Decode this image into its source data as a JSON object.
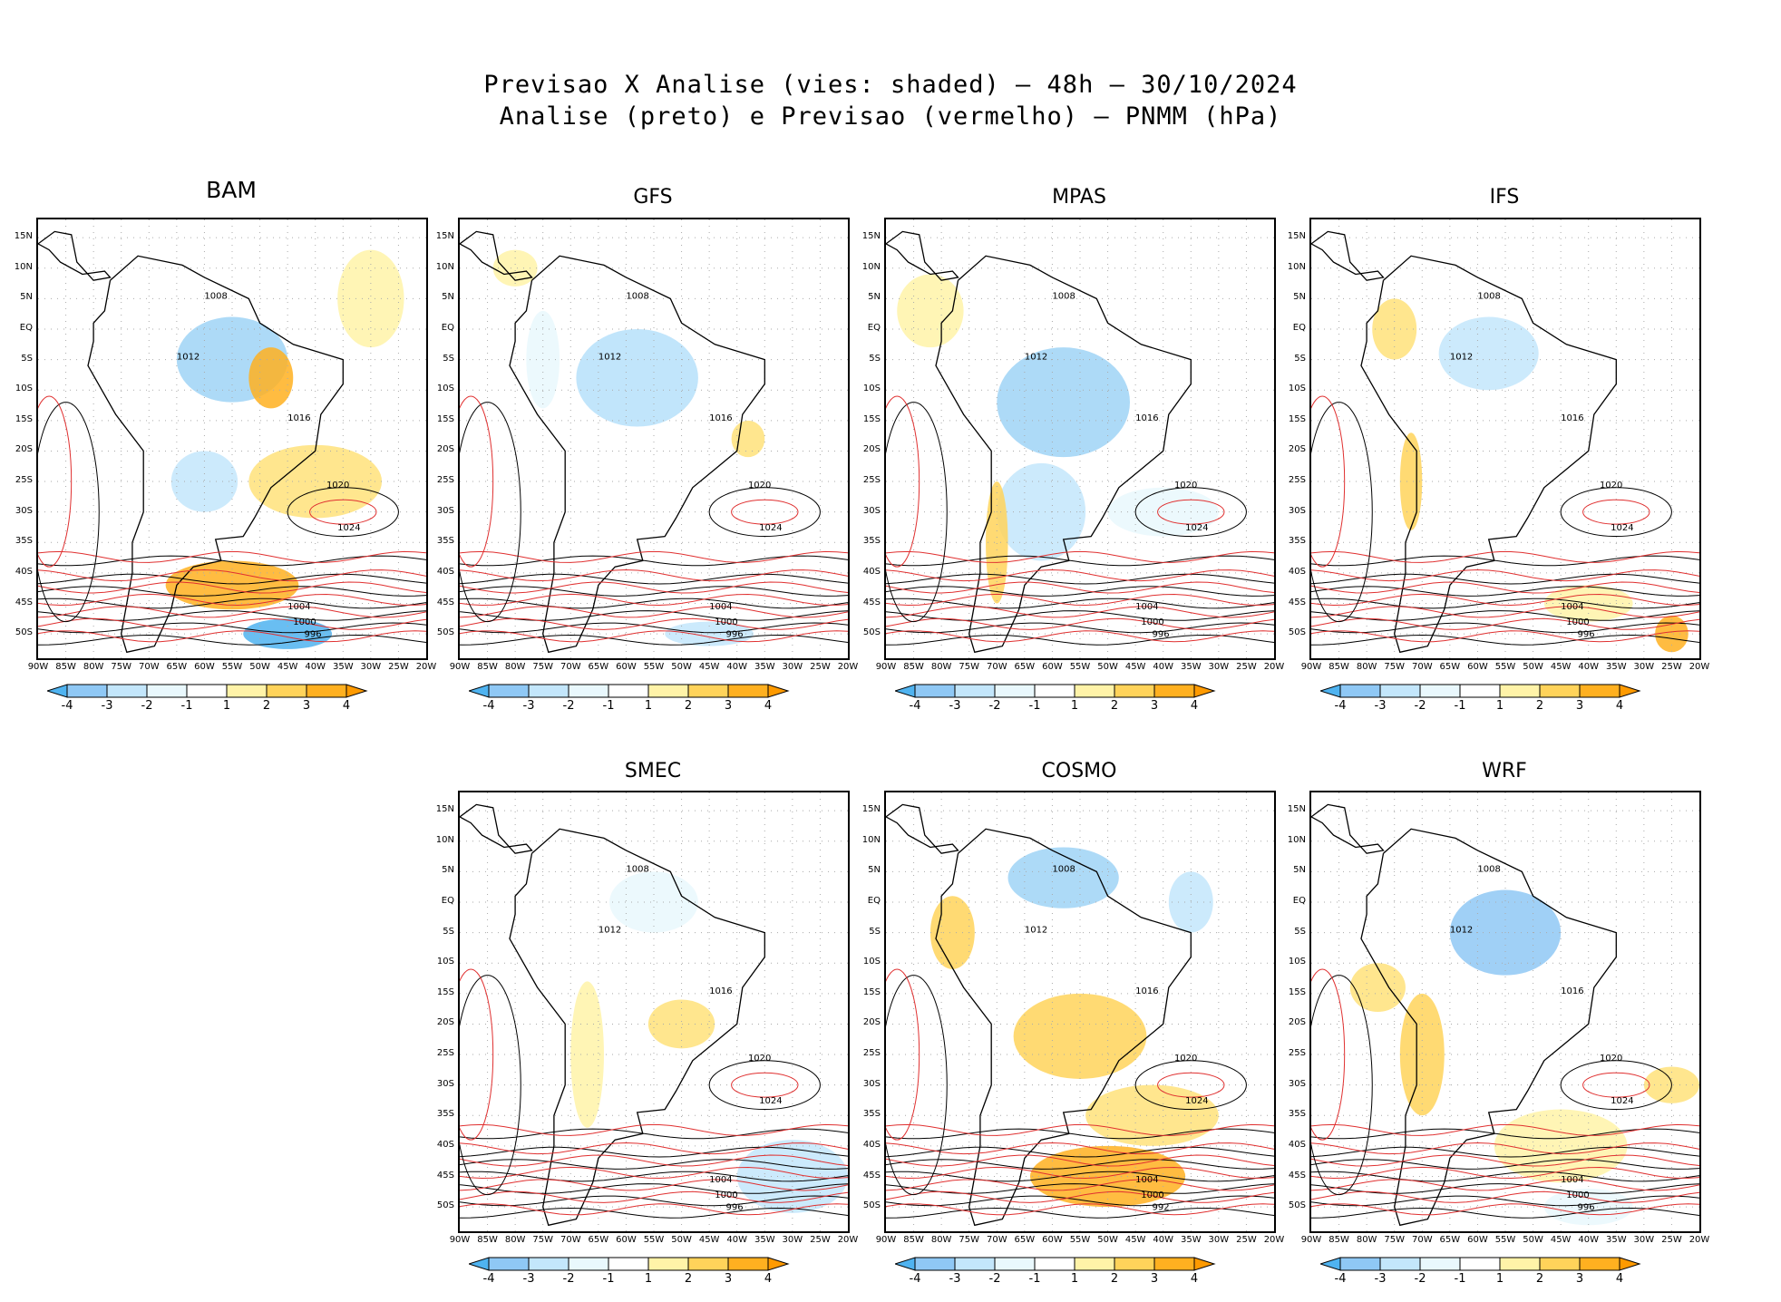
{
  "header": {
    "line1": "Previsao X Analise (vies: shaded) – 48h – 30/10/2024",
    "line2": "Analise (preto) e Previsao (vermelho) – PNMM (hPa)"
  },
  "axes": {
    "lat_labels": [
      "15N",
      "10N",
      "5N",
      "EQ",
      "5S",
      "10S",
      "15S",
      "20S",
      "25S",
      "30S",
      "35S",
      "40S",
      "45S",
      "50S"
    ],
    "lon_labels": [
      "90W",
      "85W",
      "80W",
      "75W",
      "70W",
      "65W",
      "60W",
      "55W",
      "50W",
      "45W",
      "40W",
      "35W",
      "30W",
      "25W",
      "20W"
    ]
  },
  "colorbar": {
    "labels": [
      "-4",
      "-3",
      "-2",
      "-1",
      "1",
      "2",
      "3",
      "4"
    ],
    "colors": [
      "#4fb3f0",
      "#8fc8f5",
      "#c3e6fb",
      "#e9f8fd",
      "#ffffff",
      "#fff3a8",
      "#ffd35a",
      "#ffb020",
      "#ff9a00"
    ]
  },
  "colors": {
    "analysis": "#000000",
    "forecast": "#e03030",
    "land": "#ffffff"
  },
  "panels": [
    {
      "name": "BAM",
      "isobars": [
        "1012",
        "1008",
        "1016",
        "1020",
        "1024",
        "1004",
        "1000",
        "996"
      ]
    },
    {
      "name": "GFS",
      "isobars": [
        "1012",
        "1008",
        "1016",
        "1020",
        "1024",
        "1004",
        "1000",
        "996"
      ]
    },
    {
      "name": "MPAS",
      "isobars": [
        "1012",
        "1008",
        "1016",
        "1020",
        "1024",
        "1004",
        "1000",
        "996"
      ]
    },
    {
      "name": "IFS",
      "isobars": [
        "1012",
        "1008",
        "1016",
        "1020",
        "1024",
        "1004",
        "1000",
        "996"
      ]
    },
    {
      "name": "SMEC",
      "isobars": [
        "1012",
        "1008",
        "1016",
        "1020",
        "1024",
        "1004",
        "1000",
        "996"
      ]
    },
    {
      "name": "COSMO",
      "isobars": [
        "1012",
        "1008",
        "1016",
        "1020",
        "1024",
        "1004",
        "1000",
        "992"
      ]
    },
    {
      "name": "WRF",
      "isobars": [
        "1012",
        "1008",
        "1016",
        "1020",
        "1024",
        "1004",
        "1000",
        "996"
      ]
    }
  ]
}
